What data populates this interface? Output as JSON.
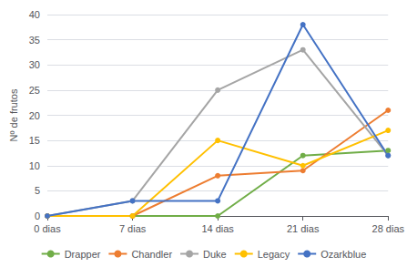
{
  "chart_data": {
    "type": "line",
    "categories": [
      "0 dias",
      "7 dias",
      "14 dias",
      "21 dias",
      "28 dias"
    ],
    "series": [
      {
        "name": "Drapper",
        "color": "#70ad47",
        "values": [
          0,
          0,
          0,
          12,
          13
        ]
      },
      {
        "name": "Chandler",
        "color": "#ed7d31",
        "values": [
          0,
          0,
          8,
          9,
          21
        ]
      },
      {
        "name": "Duke",
        "color": "#a5a5a5",
        "values": [
          0,
          3,
          25,
          33,
          12
        ]
      },
      {
        "name": "Legacy",
        "color": "#ffc000",
        "values": [
          0,
          0,
          15,
          10,
          17
        ]
      },
      {
        "name": "Ozarkblue",
        "color": "#4472c4",
        "values": [
          0,
          3,
          3,
          38,
          12
        ]
      }
    ],
    "ylabel": "Nº de frutos",
    "ylim": [
      0,
      40
    ],
    "yticks": [
      0,
      5,
      10,
      15,
      20,
      25,
      30,
      35,
      40
    ],
    "grid": true,
    "legend": "bottom",
    "marker": "circle"
  }
}
